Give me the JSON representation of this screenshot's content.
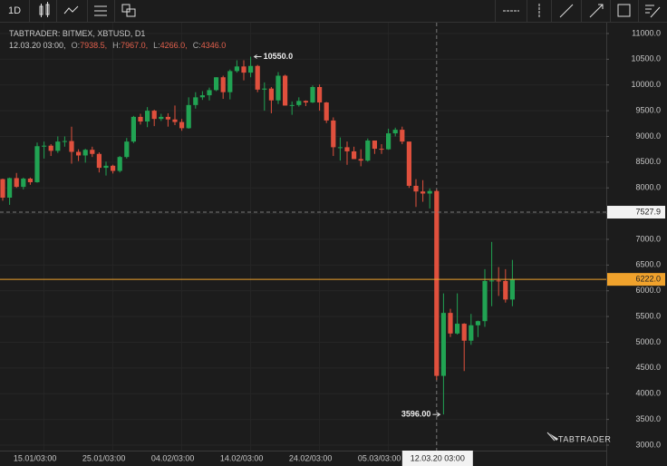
{
  "toolbar": {
    "interval": "1D"
  },
  "legend": {
    "title": "TABTRADER: BITMEX, XBTUSD, D1",
    "time": "12.03.20 03:00,",
    "items": [
      {
        "label": "O:",
        "value": "7938.5,"
      },
      {
        "label": "H:",
        "value": "7967.0,"
      },
      {
        "label": "L:",
        "value": "4266.0,"
      },
      {
        "label": "C:",
        "value": "4346.0"
      }
    ]
  },
  "chart_data": {
    "type": "candlestick",
    "categories": [
      null,
      null,
      null,
      null,
      null,
      null,
      "15.01/03:00",
      null,
      null,
      null,
      null,
      null,
      null,
      null,
      null,
      null,
      "25.01/03:00",
      null,
      null,
      null,
      null,
      null,
      null,
      null,
      null,
      null,
      "04.02/03:00",
      null,
      null,
      null,
      null,
      null,
      null,
      null,
      null,
      null,
      "14.02/03:00",
      null,
      null,
      null,
      null,
      null,
      null,
      null,
      null,
      null,
      "24.02/03:00",
      null,
      null,
      null,
      null,
      null,
      null,
      null,
      null,
      null,
      "05.03/03:00",
      null,
      null,
      null,
      null,
      null,
      null,
      "12.03.20 03:00",
      null,
      null,
      null,
      null,
      null,
      null,
      null,
      null,
      null,
      null,
      null
    ],
    "open": [
      8170,
      7810,
      8190,
      8020,
      8180,
      8110,
      8810,
      8820,
      8720,
      8900,
      8910,
      8700,
      8630,
      8740,
      8660,
      8390,
      8430,
      8330,
      8600,
      8900,
      9380,
      9290,
      9500,
      9340,
      9380,
      9330,
      9280,
      9160,
      9610,
      9760,
      9800,
      9900,
      10150,
      9860,
      10270,
      10360,
      10240,
      10370,
      9910,
      9930,
      9700,
      10180,
      9600,
      9610,
      9690,
      9660,
      9960,
      9660,
      9310,
      8790,
      8790,
      8710,
      8560,
      8530,
      8920,
      8760,
      8750,
      9060,
      9130,
      8900,
      8040,
      7930,
      7890,
      7938.5,
      4346,
      5570,
      5170,
      5360,
      5030,
      5330,
      5410,
      6190,
      6200,
      6190,
      5830
    ],
    "high": [
      8180,
      8200,
      8290,
      8200,
      8200,
      8880,
      8900,
      8850,
      9000,
      9000,
      9190,
      8750,
      8760,
      8800,
      8690,
      8510,
      8450,
      8620,
      8970,
      9400,
      9440,
      9570,
      9520,
      9440,
      9450,
      9600,
      9340,
      9760,
      9860,
      9880,
      9950,
      10150,
      10180,
      10300,
      10480,
      10480,
      10550,
      10390,
      10050,
      9960,
      10250,
      10200,
      9680,
      9760,
      9700,
      9990,
      10010,
      9670,
      9370,
      8980,
      8900,
      8800,
      8750,
      8960,
      8920,
      8850,
      9150,
      9170,
      9190,
      8900,
      8170,
      8150,
      7990,
      7967,
      5950,
      5650,
      5950,
      5370,
      5550,
      5420,
      6420,
      6950,
      6460,
      6420,
      6600
    ],
    "low": [
      7750,
      7670,
      8000,
      7970,
      8060,
      8100,
      8570,
      8620,
      8680,
      8800,
      8470,
      8520,
      8490,
      8600,
      8300,
      8240,
      8280,
      8300,
      8570,
      8870,
      9230,
      9180,
      9200,
      9300,
      9190,
      9220,
      9110,
      9150,
      9540,
      9710,
      9700,
      9880,
      9730,
      9720,
      10240,
      10090,
      10150,
      9860,
      9500,
      9450,
      9630,
      9600,
      9420,
      9580,
      9590,
      9650,
      9500,
      9260,
      8620,
      8530,
      8450,
      8560,
      8420,
      8510,
      8660,
      8660,
      8740,
      9000,
      8850,
      8000,
      7630,
      7730,
      7600,
      4266,
      3596,
      5100,
      5150,
      4440,
      4950,
      5100,
      5300,
      5700,
      5900,
      5770,
      5700
    ],
    "close": [
      7810,
      8190,
      8020,
      8180,
      8110,
      8810,
      8820,
      8720,
      8900,
      8910,
      8700,
      8630,
      8740,
      8660,
      8390,
      8430,
      8330,
      8600,
      8900,
      9380,
      9290,
      9500,
      9340,
      9380,
      9330,
      9280,
      9160,
      9610,
      9760,
      9800,
      9900,
      10150,
      9860,
      10270,
      10360,
      10240,
      10370,
      9910,
      9930,
      9700,
      10180,
      9600,
      9610,
      9690,
      9660,
      9960,
      9660,
      9310,
      8790,
      8790,
      8710,
      8560,
      8530,
      8920,
      8760,
      8750,
      9060,
      9130,
      8900,
      8040,
      7930,
      7890,
      7938.5,
      4346,
      5570,
      5170,
      5360,
      5030,
      5330,
      5410,
      6190,
      6200,
      6190,
      5830,
      6222
    ],
    "up_color": "#21a353",
    "down_color": "#e0503d",
    "ylim": [
      2894,
      11211
    ],
    "yticks": [
      {
        "value": 3000,
        "label": "3000.0"
      },
      {
        "value": 3500,
        "label": "3500.0"
      },
      {
        "value": 4000,
        "label": "4000.0"
      },
      {
        "value": 4500,
        "label": "4500.0"
      },
      {
        "value": 5000,
        "label": "5000.0"
      },
      {
        "value": 5500,
        "label": "5500.0"
      },
      {
        "value": 6000,
        "label": "6000.0"
      },
      {
        "value": 6500,
        "label": "6500.0"
      },
      {
        "value": 7000,
        "label": "7000.0"
      },
      {
        "value": 7500,
        "label": "7500.0"
      },
      {
        "value": 8000,
        "label": "8000.0"
      },
      {
        "value": 8500,
        "label": "8500.0"
      },
      {
        "value": 9000,
        "label": "9000.0"
      },
      {
        "value": 9500,
        "label": "9500.0"
      },
      {
        "value": 10000,
        "label": "10000.0"
      },
      {
        "value": 10500,
        "label": "10500.0"
      },
      {
        "value": 11000,
        "label": "11000.0"
      }
    ],
    "grid": true,
    "crosshair_price": {
      "value": 7527.9,
      "label": "7527.9"
    },
    "last_price": {
      "value": 6222,
      "label": "6222.0",
      "color": "#f0a22c"
    },
    "max_marker": {
      "value": 10550,
      "label": "10550.0"
    },
    "min_marker": {
      "value": 3596,
      "label": "3596.00"
    },
    "watermark": "TABTRADER"
  }
}
